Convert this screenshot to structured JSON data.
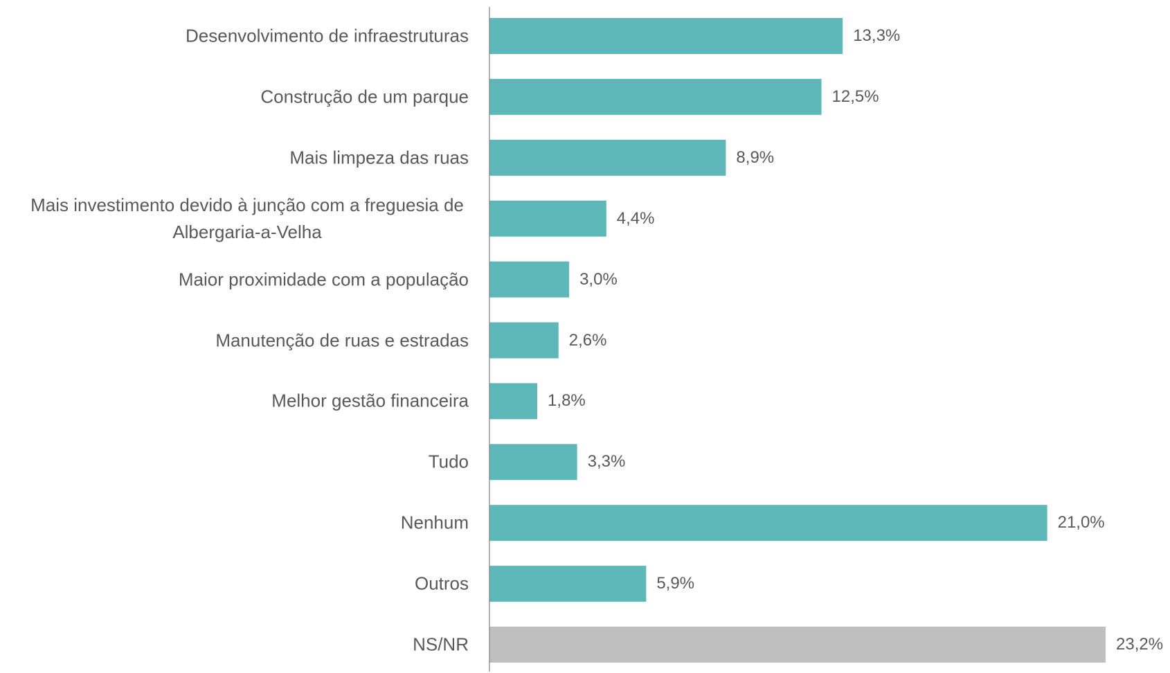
{
  "chart_data": {
    "type": "bar",
    "orientation": "horizontal",
    "categories": [
      "Desenvolvimento de infraestruturas",
      "Construção de um parque",
      "Mais limpeza das ruas",
      "Mais investimento devido à junção com a freguesia de Albergaria-a-Velha",
      "Maior proximidade com a população",
      "Manutenção de ruas e estradas",
      "Melhor gestão financeira",
      "Tudo",
      "Nenhum",
      "Outros",
      "NS/NR"
    ],
    "values": [
      13.3,
      12.5,
      8.9,
      4.4,
      3.0,
      2.6,
      1.8,
      3.3,
      21.0,
      5.9,
      23.2
    ],
    "value_labels": [
      "13,3%",
      "12,5%",
      "8,9%",
      "4,4%",
      "3,0%",
      "2,6%",
      "1,8%",
      "3,3%",
      "21,0%",
      "5,9%",
      "23,2%"
    ],
    "colors": [
      "#5eb8b9",
      "#5eb8b9",
      "#5eb8b9",
      "#5eb8b9",
      "#5eb8b9",
      "#5eb8b9",
      "#5eb8b9",
      "#5eb8b9",
      "#5eb8b9",
      "#5eb8b9",
      "#bfbfbf"
    ]
  }
}
